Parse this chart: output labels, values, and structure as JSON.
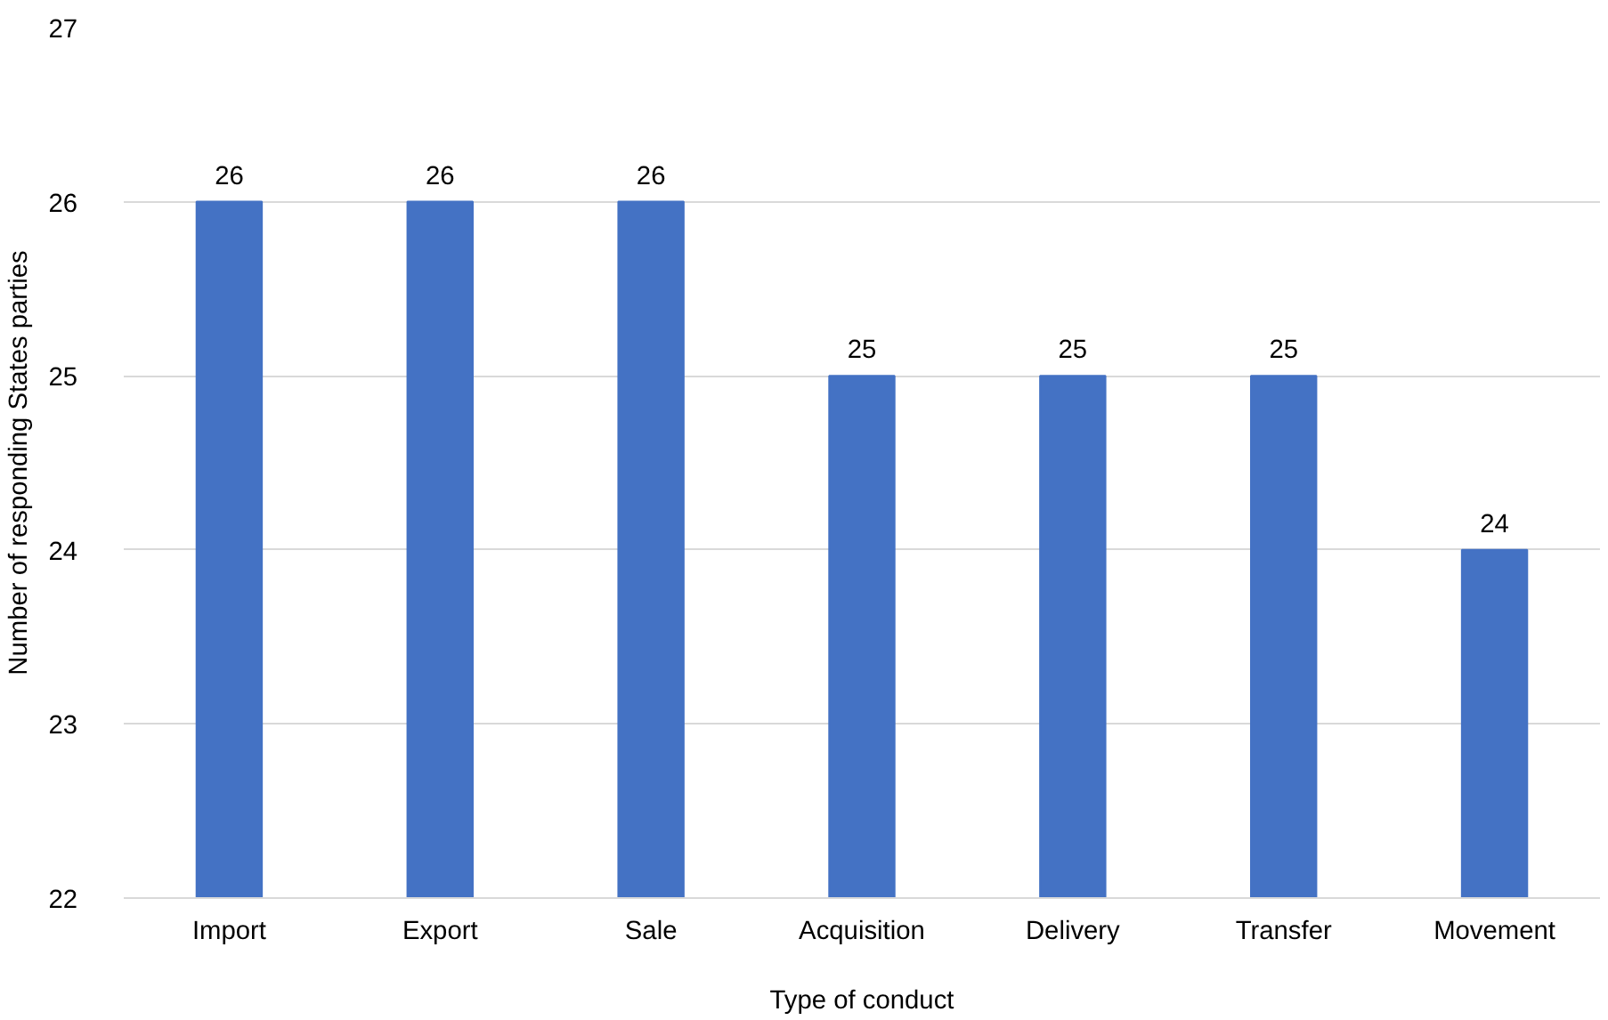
{
  "chart_data": {
    "type": "bar",
    "xlabel": "Type of conduct",
    "ylabel": "Number of responding States parties",
    "categories": [
      "Import",
      "Export",
      "Sale",
      "Acquisition",
      "Delivery",
      "Transfer",
      "Movement"
    ],
    "values": [
      26,
      26,
      26,
      25,
      25,
      25,
      24
    ],
    "color": "#4472c4",
    "ylim": [
      22,
      27
    ],
    "yticks": [
      22,
      23,
      24,
      25,
      26,
      27
    ],
    "grid": "y",
    "data_labels": true
  }
}
